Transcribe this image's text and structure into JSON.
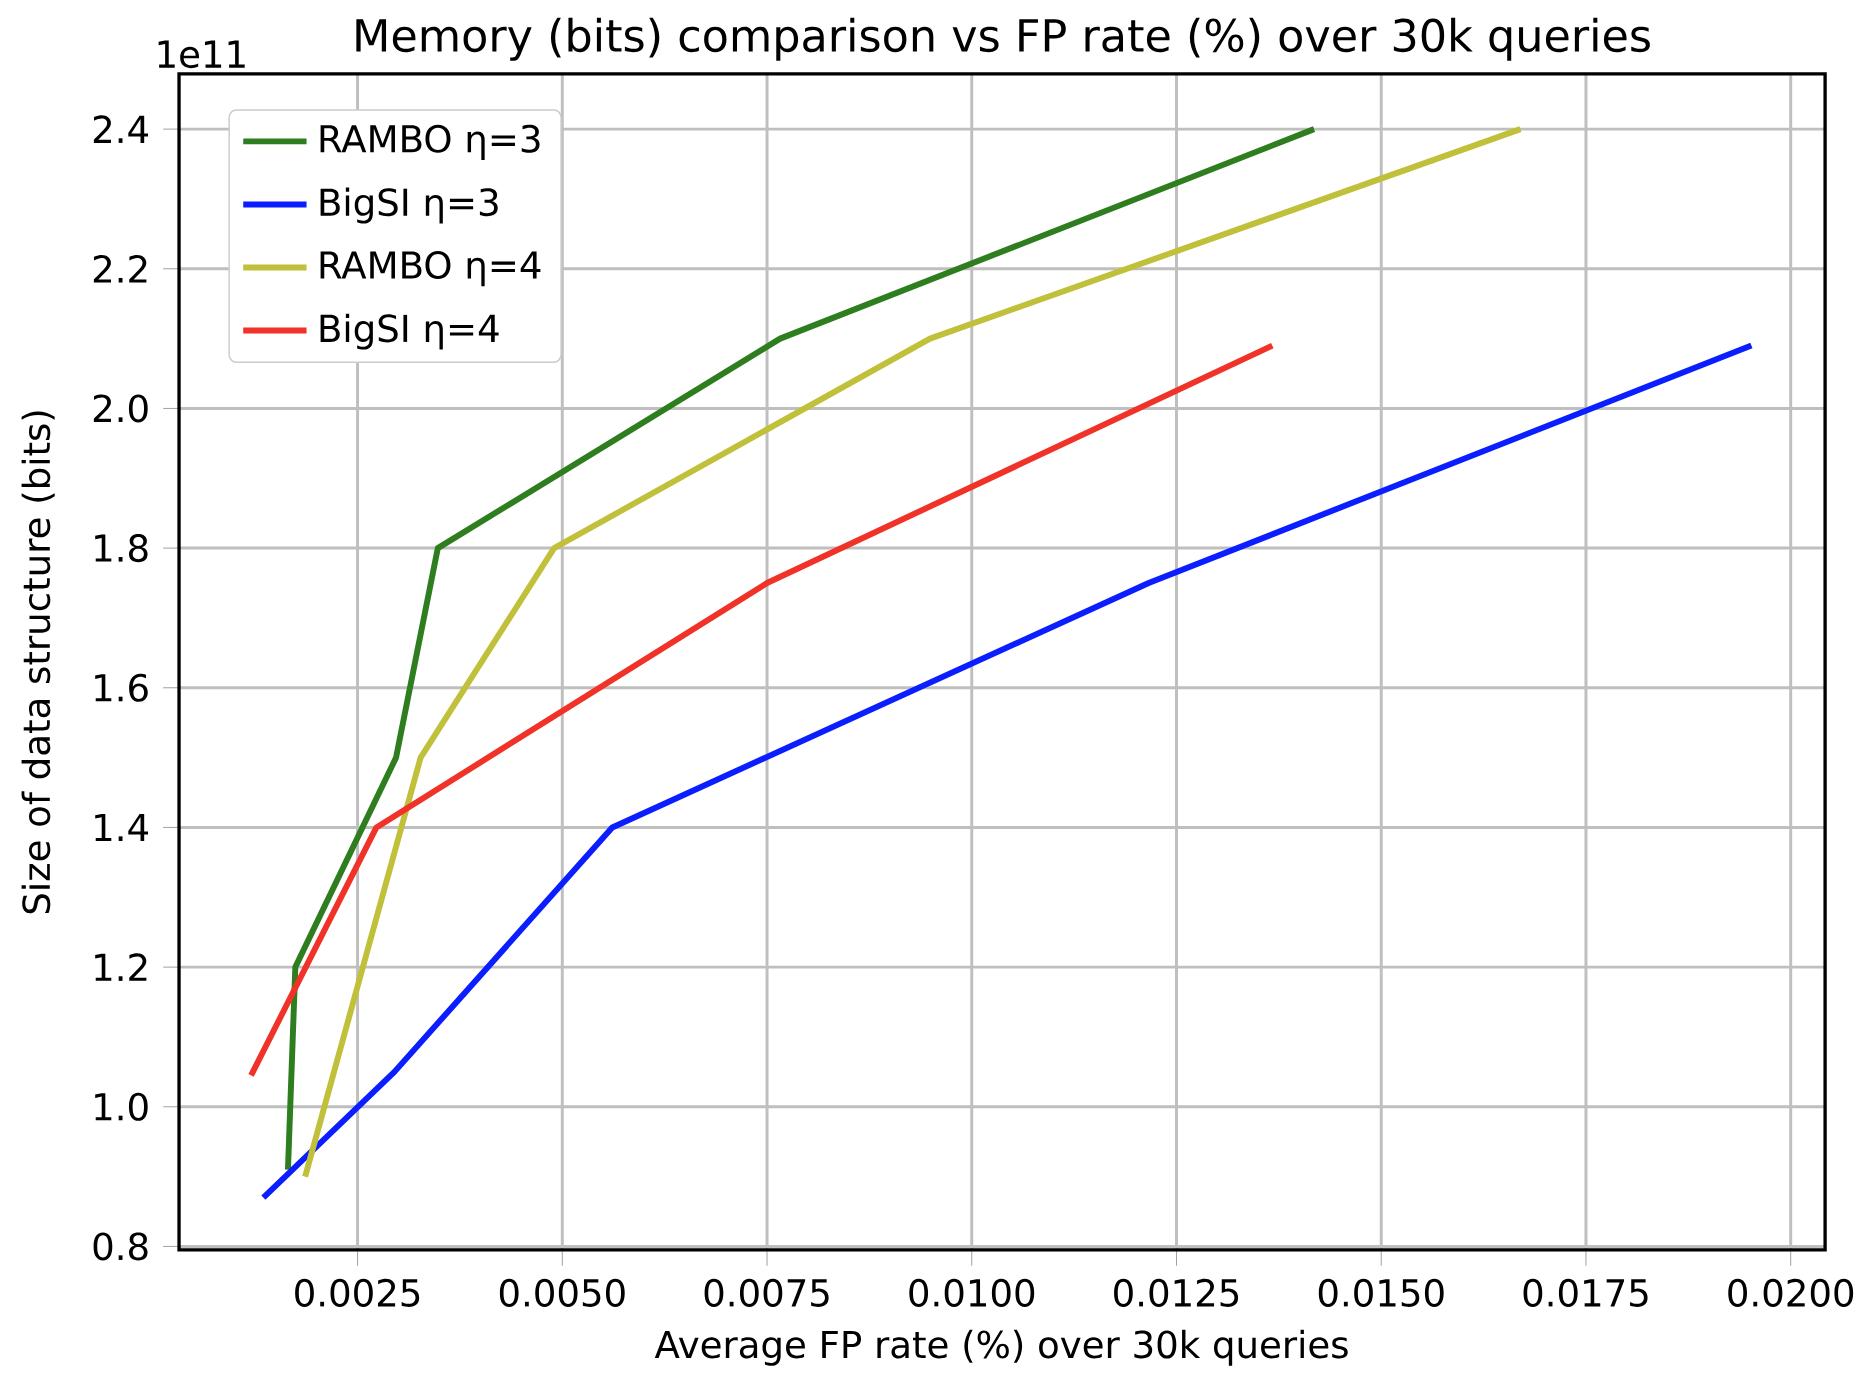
{
  "chart_data": {
    "type": "line",
    "title": "Memory (bits) comparison vs FP rate (%) over 30k queries",
    "xlabel": "Average FP rate (%) over 30k queries",
    "ylabel": "Size of data structure (bits)",
    "annotations": [
      "1e11"
    ],
    "series": [
      {
        "name": "RAMBO η=3",
        "color": "#2e7d1f",
        "x": [
          0.00165,
          0.00174,
          0.00297,
          0.00348,
          0.00766,
          0.01418
        ],
        "values": [
          0.91,
          1.2,
          1.5,
          1.8,
          2.1,
          2.4
        ]
      },
      {
        "name": "BigSI η=3",
        "color": "#0a1eff",
        "x": [
          0.00135,
          0.00295,
          0.00561,
          0.01216,
          0.01952
        ],
        "values": [
          0.87,
          1.05,
          1.4,
          1.75,
          2.09
        ]
      },
      {
        "name": "RAMBO η=4",
        "color": "#c0c03a",
        "x": [
          0.00186,
          0.00327,
          0.0049,
          0.00949,
          0.0167
        ],
        "values": [
          0.9,
          1.5,
          1.8,
          2.1,
          2.4
        ]
      },
      {
        "name": "BigSI η=4",
        "color": "#f03228",
        "x": [
          0.0012,
          0.00273,
          0.0075,
          0.01367
        ],
        "values": [
          1.045,
          1.4,
          1.75,
          2.09
        ]
      }
    ],
    "xlim": [
      0.00032,
      0.02042
    ],
    "ylim": [
      0.795,
      2.479
    ],
    "xticks": [
      0.0025,
      {
        "value": 0.005,
        "label": "0.0050"
      },
      0.0075,
      {
        "value": 0.01,
        "label": "0.0100"
      },
      0.0125,
      {
        "value": 0.015,
        "label": "0.0150"
      },
      0.0175,
      {
        "value": 0.02,
        "label": "0.0200"
      }
    ],
    "yticks": [
      0.8,
      {
        "value": 1.0,
        "label": "1.0"
      },
      1.2,
      1.4,
      1.6,
      1.8,
      {
        "value": 2.0,
        "label": "2.0"
      },
      2.2,
      2.4
    ],
    "grid": true,
    "legend": "top left",
    "line_style": "solid",
    "marker": "none"
  }
}
